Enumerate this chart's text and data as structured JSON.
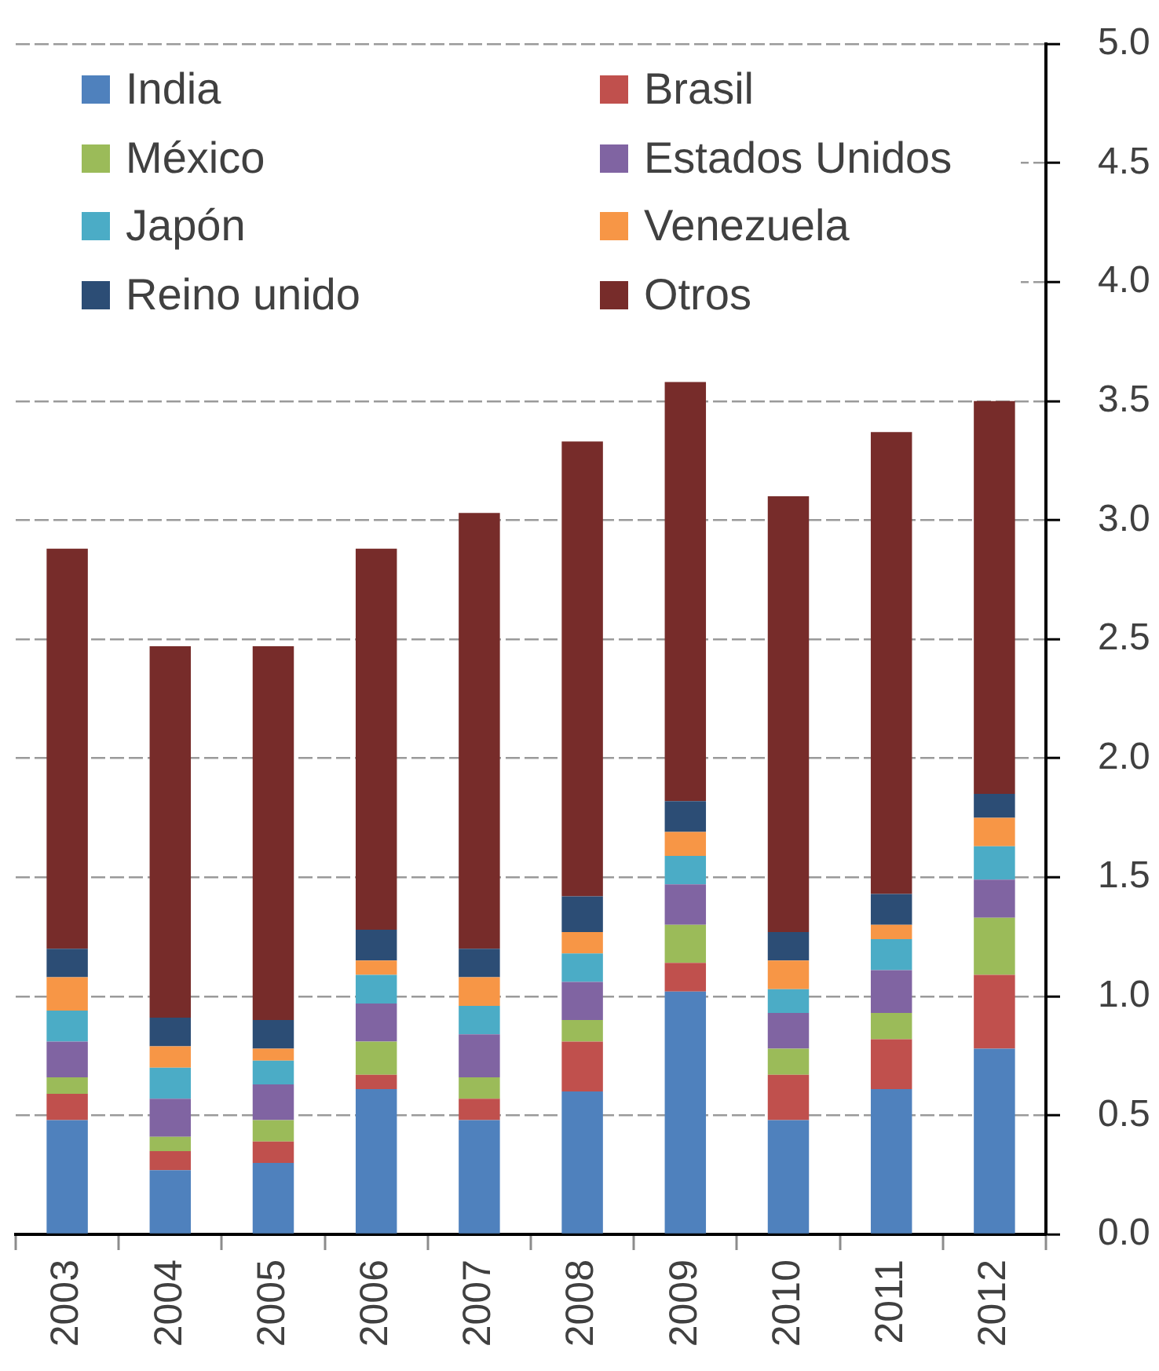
{
  "chart_data": {
    "type": "bar",
    "stacked": true,
    "categories": [
      "2003",
      "2004",
      "2005",
      "2006",
      "2007",
      "2008",
      "2009",
      "2010",
      "2011",
      "2012"
    ],
    "series": [
      {
        "name": "India",
        "color": "#4f81bd",
        "values": [
          0.48,
          0.27,
          0.3,
          0.61,
          0.48,
          0.6,
          1.02,
          0.48,
          0.61,
          0.78
        ]
      },
      {
        "name": "Brasil",
        "color": "#c0504d",
        "values": [
          0.11,
          0.08,
          0.09,
          0.06,
          0.09,
          0.21,
          0.12,
          0.19,
          0.21,
          0.31
        ]
      },
      {
        "name": "México",
        "color": "#9bbb59",
        "values": [
          0.07,
          0.06,
          0.09,
          0.14,
          0.09,
          0.09,
          0.16,
          0.11,
          0.11,
          0.24
        ]
      },
      {
        "name": "Estados Unidos",
        "color": "#8064a2",
        "values": [
          0.15,
          0.16,
          0.15,
          0.16,
          0.18,
          0.16,
          0.17,
          0.15,
          0.18,
          0.16
        ]
      },
      {
        "name": "Japón",
        "color": "#4bacc6",
        "values": [
          0.13,
          0.13,
          0.1,
          0.12,
          0.12,
          0.12,
          0.12,
          0.1,
          0.13,
          0.14
        ]
      },
      {
        "name": "Venezuela",
        "color": "#f79646",
        "values": [
          0.14,
          0.09,
          0.05,
          0.06,
          0.12,
          0.09,
          0.1,
          0.12,
          0.06,
          0.12
        ]
      },
      {
        "name": "Reino unido",
        "color": "#2c4d75",
        "values": [
          0.12,
          0.12,
          0.12,
          0.13,
          0.12,
          0.15,
          0.13,
          0.12,
          0.13,
          0.1
        ]
      },
      {
        "name": "Otros",
        "color": "#772c2a",
        "values": [
          1.68,
          1.56,
          1.57,
          1.6,
          1.83,
          1.91,
          1.76,
          1.83,
          1.94,
          1.65
        ]
      }
    ],
    "ylim": [
      0,
      5
    ],
    "yticks": [
      {
        "value": 0,
        "label": "0.0"
      },
      {
        "value": 0.5,
        "label": "0.5"
      },
      {
        "value": 1,
        "label": "1.0"
      },
      {
        "value": 1.5,
        "label": "1.5"
      },
      {
        "value": 2,
        "label": "2.0"
      },
      {
        "value": 2.5,
        "label": "2.5"
      },
      {
        "value": 3,
        "label": "3.0"
      },
      {
        "value": 3.5,
        "label": "3.5"
      },
      {
        "value": 4,
        "label": "4.0"
      },
      {
        "value": 4.5,
        "label": "4.5"
      },
      {
        "value": 5,
        "label": "5.0"
      }
    ],
    "grid": "y",
    "legend": "top left"
  }
}
